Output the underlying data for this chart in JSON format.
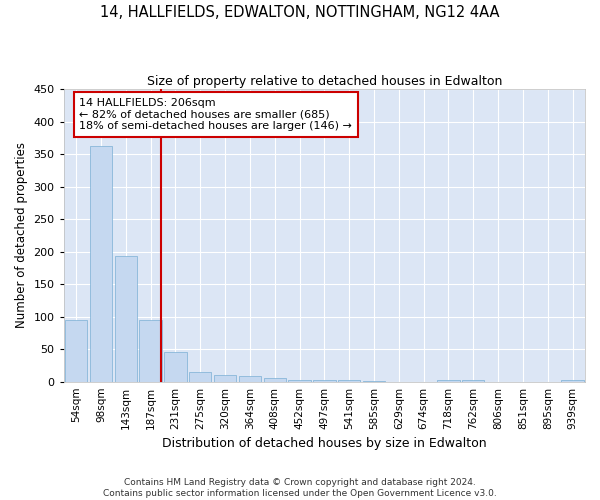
{
  "title": "14, HALLFIELDS, EDWALTON, NOTTINGHAM, NG12 4AA",
  "subtitle": "Size of property relative to detached houses in Edwalton",
  "xlabel": "Distribution of detached houses by size in Edwalton",
  "ylabel": "Number of detached properties",
  "bar_color": "#c5d8f0",
  "bar_edge_color": "#7bafd4",
  "background_color": "#dce6f5",
  "grid_color": "#ffffff",
  "categories": [
    "54sqm",
    "98sqm",
    "143sqm",
    "187sqm",
    "231sqm",
    "275sqm",
    "320sqm",
    "364sqm",
    "408sqm",
    "452sqm",
    "497sqm",
    "541sqm",
    "585sqm",
    "629sqm",
    "674sqm",
    "718sqm",
    "762sqm",
    "806sqm",
    "851sqm",
    "895sqm",
    "939sqm"
  ],
  "values": [
    95,
    362,
    193,
    95,
    45,
    15,
    10,
    8,
    5,
    3,
    3,
    2,
    1,
    0,
    0,
    3,
    3,
    0,
    0,
    0,
    2
  ],
  "property_line_color": "#cc0000",
  "annotation_text": "14 HALLFIELDS: 206sqm\n← 82% of detached houses are smaller (685)\n18% of semi-detached houses are larger (146) →",
  "annotation_box_color": "#ffffff",
  "annotation_box_edge": "#cc0000",
  "ylim": [
    0,
    450
  ],
  "yticks": [
    0,
    50,
    100,
    150,
    200,
    250,
    300,
    350,
    400,
    450
  ],
  "footer": "Contains HM Land Registry data © Crown copyright and database right 2024.\nContains public sector information licensed under the Open Government Licence v3.0.",
  "fig_width": 6.0,
  "fig_height": 5.0,
  "fig_bg": "#ffffff"
}
